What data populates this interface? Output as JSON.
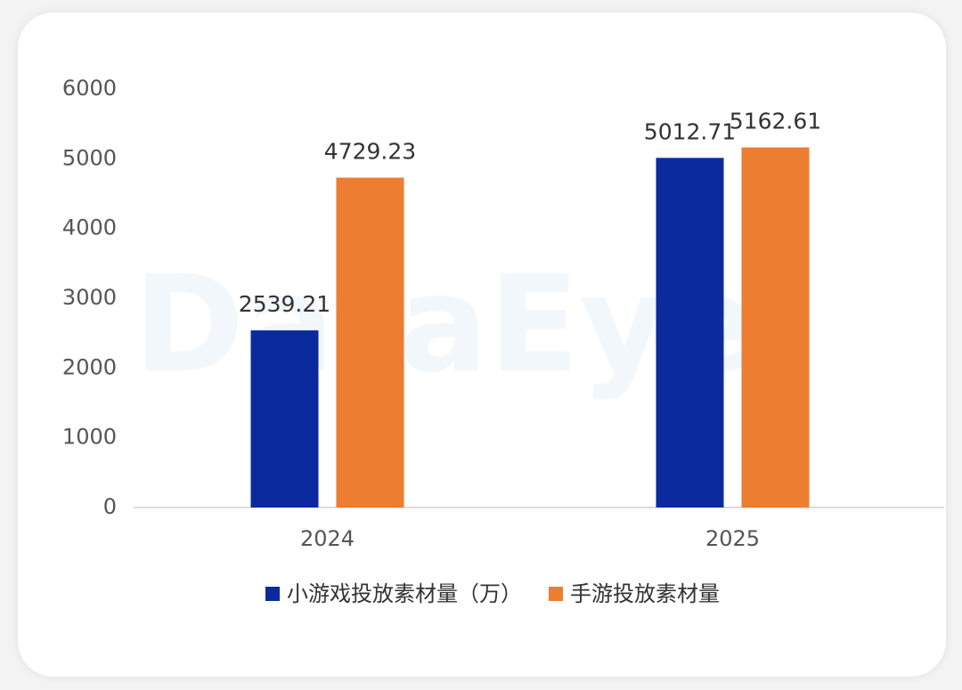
{
  "chart_data": {
    "type": "bar",
    "watermark": "DataEye",
    "categories": [
      "2024",
      "2025"
    ],
    "series": [
      {
        "name": "小游戏投放素材量（万）",
        "color": "#0b2a9e",
        "values": [
          2539.21,
          5012.71
        ]
      },
      {
        "name": "手游投放素材量",
        "color": "#ed7d31",
        "values": [
          4729.23,
          5162.61
        ]
      }
    ],
    "ylim": [
      0,
      6000
    ],
    "yticks": [
      0,
      1000,
      2000,
      3000,
      4000,
      5000,
      6000
    ],
    "grid": false,
    "legend": "bottom"
  }
}
